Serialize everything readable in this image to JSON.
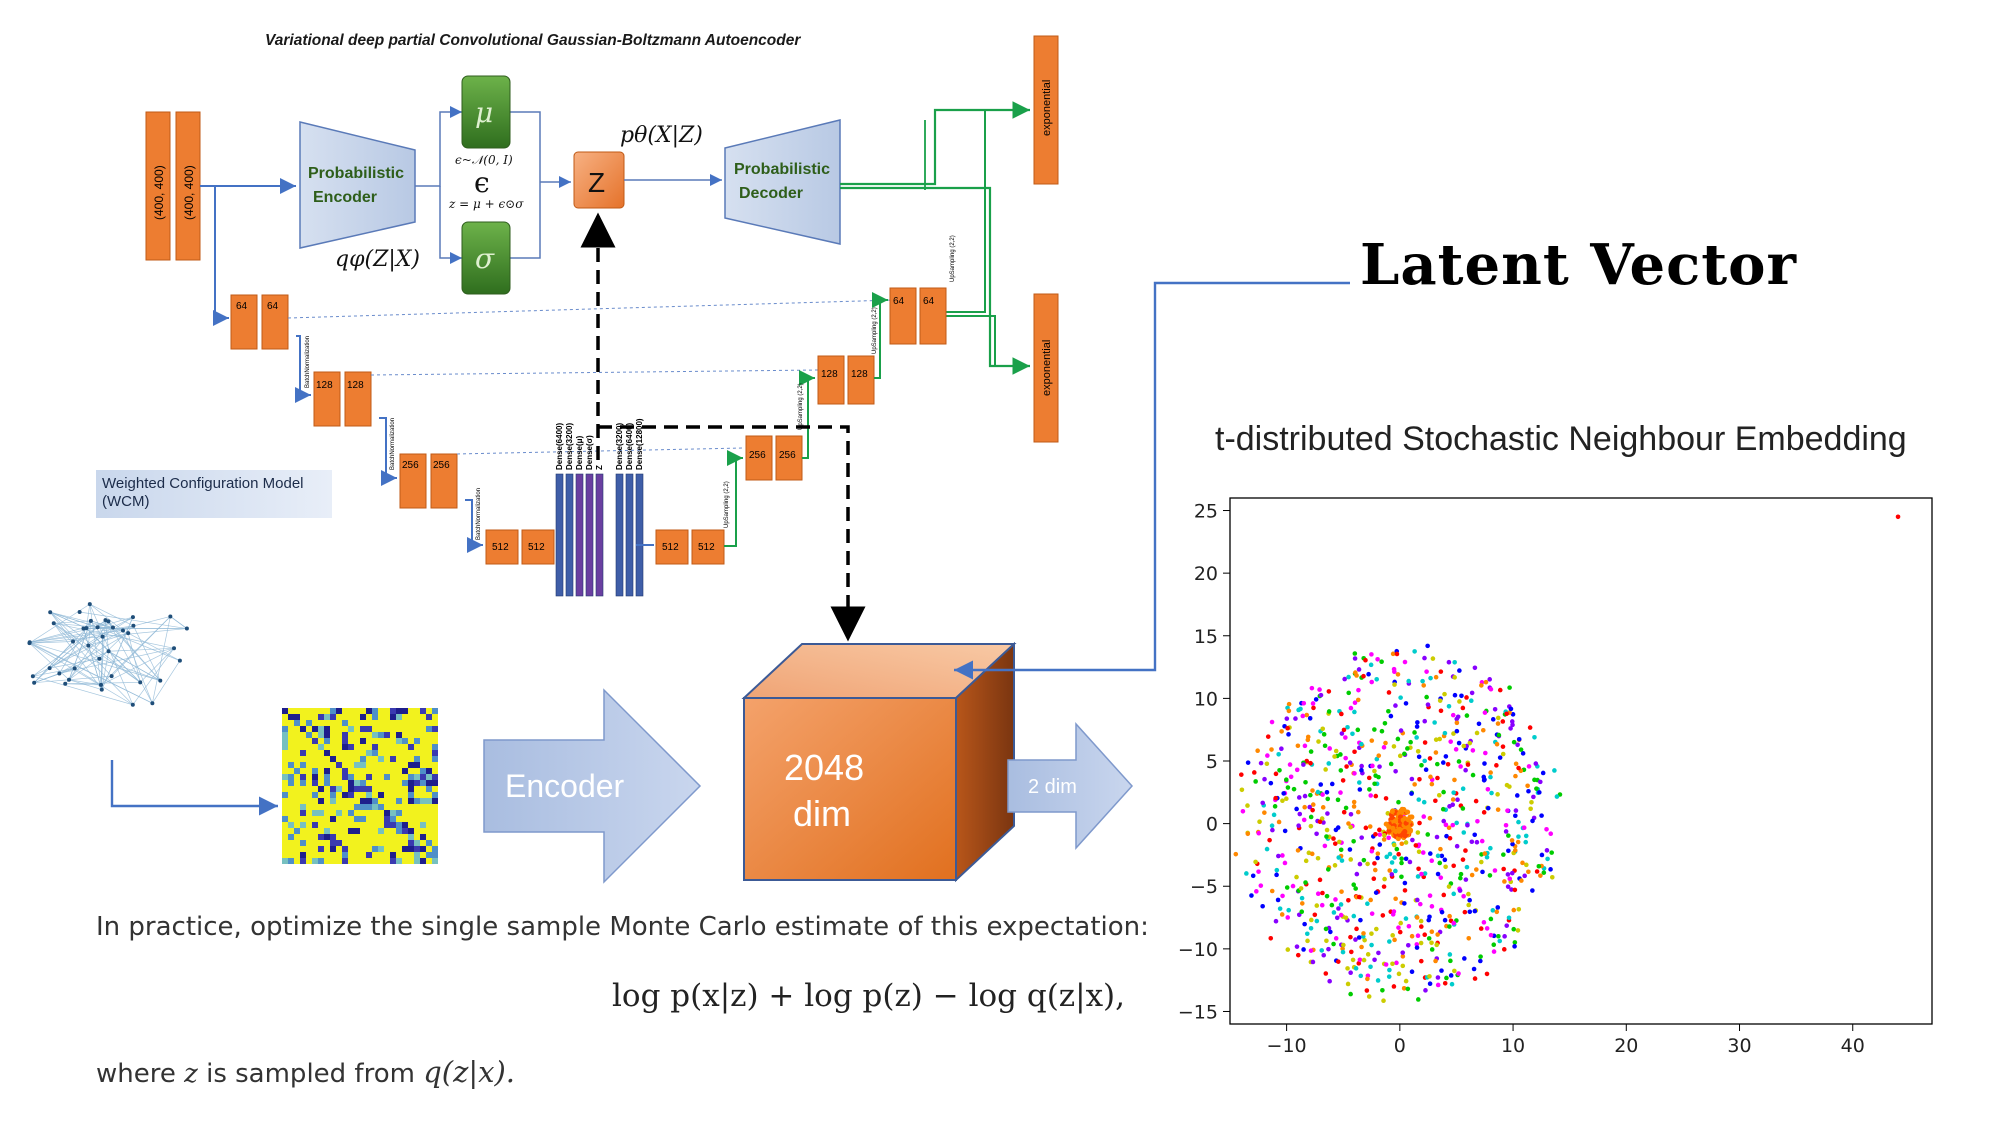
{
  "diagram": {
    "title": "Variational deep partial Convolutional Gaussian-Boltzmann Autoencoder",
    "inputs": [
      "(400, 400)",
      "(400, 400)"
    ],
    "encoder_label_line1": "Probabilistic",
    "encoder_label_line2": "Encoder",
    "decoder_label_line1": "Probabilistic",
    "decoder_label_line2": "Decoder",
    "q_label": "qφ(Z|X)",
    "p_label": "pθ(X|Z)",
    "mu": "μ",
    "sigma": "σ",
    "epsilon": "ϵ",
    "eps_dist": "ϵ~𝒩(0, I)",
    "reparam": "z = μ + ϵ⊙σ",
    "z_node": "Z",
    "outputs": [
      "exponential",
      "exponential"
    ],
    "encoder_blocks": [
      [
        "64",
        "64"
      ],
      [
        "128",
        "128"
      ],
      [
        "256",
        "256"
      ],
      [
        "512",
        "512"
      ]
    ],
    "decoder_blocks": [
      [
        "512",
        "512"
      ],
      [
        "256",
        "256"
      ],
      [
        "128",
        "128"
      ],
      [
        "64",
        "64"
      ]
    ],
    "batchnorm_label": "BatchNormalization",
    "upsampling_label": "UpSampling (2,2)",
    "dense_labels": [
      "Dense(6400)",
      "Dense(3200)",
      "Dense(μ)",
      "Dense(σ)",
      "Z",
      "Dense(3200)",
      "Dense(6400)",
      "Dense(12800)"
    ],
    "wcm_label": "Weighted Configuration Model (WCM)",
    "encoder_arrow": "Encoder",
    "cube_line1": "2048",
    "cube_line2": "dim",
    "small_arrow": "2 dim"
  },
  "latent_vector": "Latent Vector",
  "text": {
    "line1": "In practice, optimize the single sample Monte Carlo estimate of this expectation:",
    "formula": "log p(x|z) + log p(z) − log q(z|x),",
    "line2_prefix": "where",
    "line2_var": "z",
    "line2_mid": "is sampled from",
    "line2_expr": "q(z|x)."
  },
  "colors": {
    "orange": "#ed7d31",
    "blue_line": "#4472c4",
    "green_line": "#1aa04a",
    "green_box": "#4a8c2a",
    "dense_blue": "#3f5ea8",
    "dense_purple": "#6a3fa0"
  },
  "chart_data": {
    "type": "scatter",
    "title": "t-distributed Stochastic Neighbour Embedding",
    "xlabel": "",
    "ylabel": "",
    "xlim": [
      -15,
      47
    ],
    "ylim": [
      -16,
      26
    ],
    "xticks": [
      -10,
      0,
      10,
      20,
      30,
      40
    ],
    "yticks": [
      -15,
      -10,
      -5,
      0,
      5,
      10,
      15,
      20,
      25
    ],
    "xtick_labels": [
      "−10",
      "0",
      "10",
      "20",
      "30",
      "40"
    ],
    "ytick_labels": [
      "−15",
      "−10",
      "−5",
      "0",
      "5",
      "10",
      "15",
      "20",
      "25"
    ],
    "cluster": {
      "center": [
        0,
        0
      ],
      "radius": 14,
      "n_points": 900
    },
    "core": {
      "center": [
        0,
        0
      ],
      "radius": 1.2
    },
    "outlier": {
      "x": 44,
      "y": 24.5
    },
    "point_colors": [
      "#ff0000",
      "#00cc00",
      "#0000ff",
      "#ff00ff",
      "#00cccc",
      "#cccc00",
      "#ff8800",
      "#8800ff"
    ],
    "grid": false
  }
}
